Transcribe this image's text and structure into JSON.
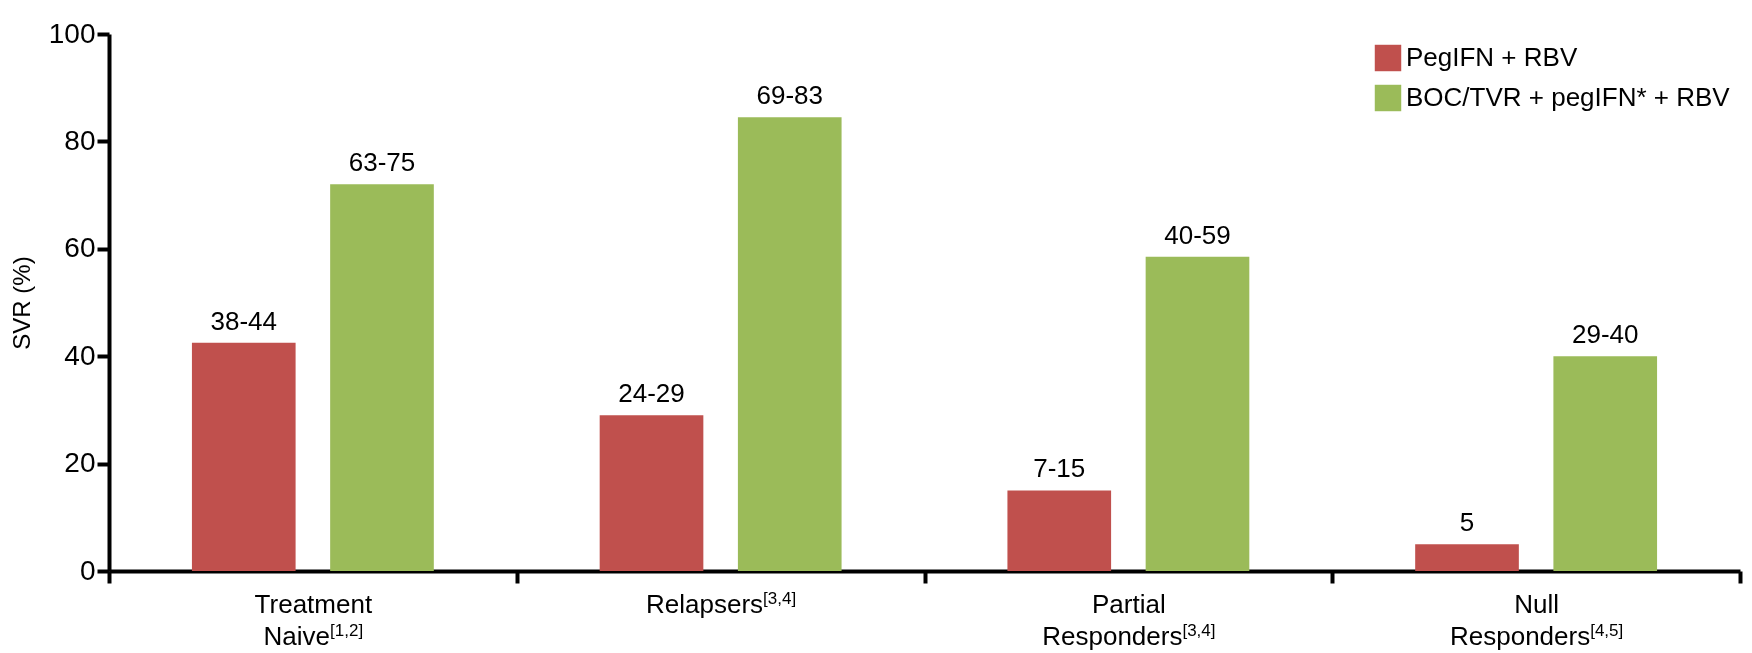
{
  "chart_data": {
    "type": "bar",
    "ylabel": "SVR (%)",
    "categories": [
      "Treatment Naive$^{[1,2]}$",
      "Relapsers$^{[3,4]}$",
      "Partial Responders$^{[3,4]}$",
      "Null Responders$^{[4,5]}$"
    ],
    "series": [
      {
        "name": "PegIFN + RBV",
        "color": "#c0504d",
        "values": [
          42.5,
          29,
          15,
          5
        ],
        "value_labels": [
          "38-44",
          "24-29",
          "7-15",
          "5"
        ]
      },
      {
        "name": "BOC/TVR + pegIFN* + RBV",
        "color": "#9bbb59",
        "values": [
          72,
          84.5,
          58.5,
          40
        ],
        "value_labels": [
          "63-75",
          "69-83",
          "40-59",
          "29-40"
        ]
      }
    ],
    "ylim": [
      0,
      100
    ],
    "yticks": [
      0,
      20,
      40,
      60,
      80,
      100
    ],
    "legend": "top right"
  }
}
